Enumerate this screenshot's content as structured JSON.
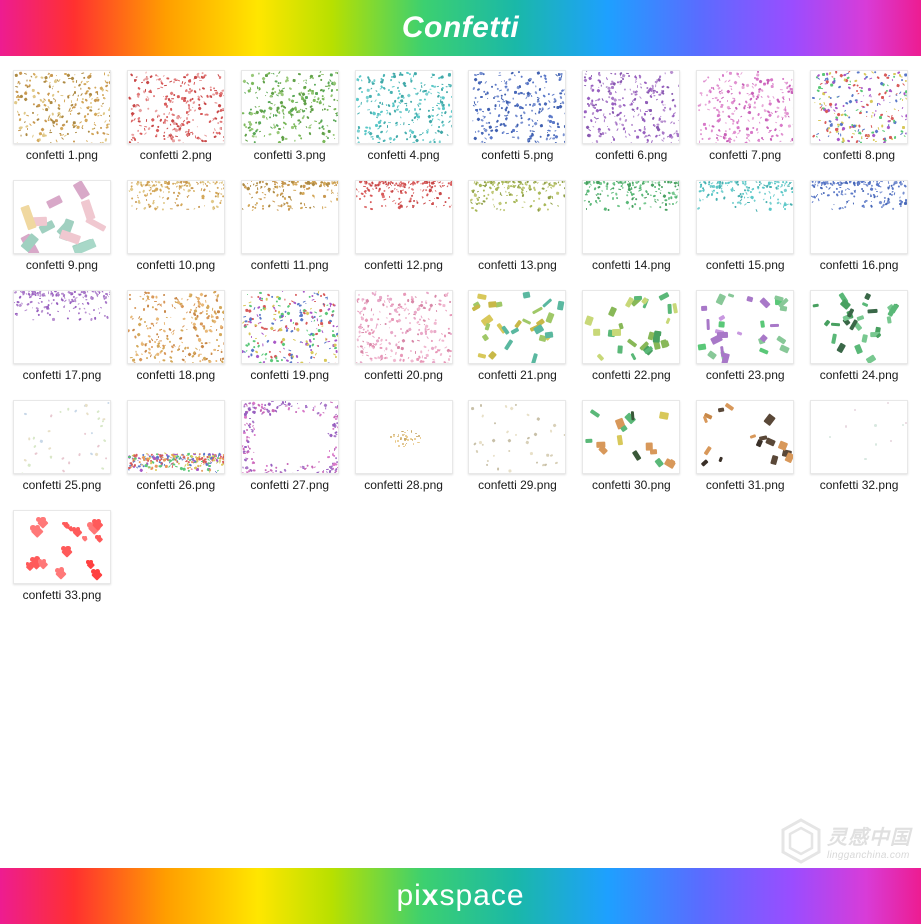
{
  "header": {
    "title": "Confetti"
  },
  "footer": {
    "brand_pre": "pi",
    "brand_x": "x",
    "brand_post": "space"
  },
  "watermark": {
    "cn": "灵感中国",
    "en": "lingganchina.com"
  },
  "grid": {
    "columns": 8,
    "thumb_width": 98,
    "thumb_height": 74,
    "label_fontsize": 12,
    "label_color": "#1a1a1a",
    "thumb_border": "#e8e8e8",
    "background": "#ffffff"
  },
  "rainbow_colors": [
    "#ed1c91",
    "#ff3030",
    "#ff9e00",
    "#ffe600",
    "#b8e000",
    "#3cd070",
    "#1ab8a8",
    "#1ea0ff",
    "#5a6cff",
    "#9a4dff",
    "#d83cd8",
    "#ed1c91"
  ],
  "files": [
    {
      "label": "confetti 1.png",
      "style": "dense-full",
      "colors": [
        "#d4a85a",
        "#c89850",
        "#ad8a44",
        "#e0c888"
      ]
    },
    {
      "label": "confetti 2.png",
      "style": "dense-full",
      "colors": [
        "#d85a5a",
        "#e07878",
        "#c84848",
        "#e8a0a0"
      ]
    },
    {
      "label": "confetti 3.png",
      "style": "dense-full",
      "colors": [
        "#7ab85a",
        "#60a048",
        "#98c878",
        "#5aa858"
      ]
    },
    {
      "label": "confetti 4.png",
      "style": "dense-full",
      "colors": [
        "#5ac8c8",
        "#48b0b0",
        "#78d0d0",
        "#40a8a8"
      ]
    },
    {
      "label": "confetti 5.png",
      "style": "dense-full",
      "colors": [
        "#5a78c8",
        "#4868b8",
        "#7890d0",
        "#4060b0"
      ]
    },
    {
      "label": "confetti 6.png",
      "style": "dense-full",
      "colors": [
        "#a878c8",
        "#9860c0",
        "#b890d0",
        "#8858b0"
      ]
    },
    {
      "label": "confetti 7.png",
      "style": "dense-full",
      "colors": [
        "#d878c8",
        "#e090d0",
        "#c860b8",
        "#e8a8d8"
      ]
    },
    {
      "label": "confetti 8.png",
      "style": "dense-full",
      "colors": [
        "#d85a5a",
        "#5ac878",
        "#5a78c8",
        "#d8c85a",
        "#a858c8"
      ]
    },
    {
      "label": "confetti 9.png",
      "style": "large-rects",
      "colors": [
        "#a8d8c8",
        "#d8a8c8",
        "#f0d8a0",
        "#c8a8e8",
        "#a0d0c0",
        "#f0c8d0"
      ]
    },
    {
      "label": "confetti 10.png",
      "style": "top-edge",
      "colors": [
        "#d4a85a",
        "#c89850",
        "#e0c888"
      ]
    },
    {
      "label": "confetti 11.png",
      "style": "top-edge",
      "colors": [
        "#d4a85a",
        "#c89850",
        "#ad8a44"
      ]
    },
    {
      "label": "confetti 12.png",
      "style": "top-edge",
      "colors": [
        "#d85a5a",
        "#e07878",
        "#c84848"
      ]
    },
    {
      "label": "confetti 13.png",
      "style": "top-edge",
      "colors": [
        "#a8b858",
        "#c0c878",
        "#90a048"
      ]
    },
    {
      "label": "confetti 14.png",
      "style": "top-edge",
      "colors": [
        "#5ab878",
        "#48a060",
        "#78c890"
      ]
    },
    {
      "label": "confetti 15.png",
      "style": "top-edge",
      "colors": [
        "#5ac8c8",
        "#48b0b0",
        "#78d0d0"
      ]
    },
    {
      "label": "confetti 16.png",
      "style": "top-edge",
      "colors": [
        "#5a78c8",
        "#4868b8",
        "#7890d0"
      ]
    },
    {
      "label": "confetti 17.png",
      "style": "top-edge",
      "colors": [
        "#a878c8",
        "#9860c0",
        "#b890d0"
      ]
    },
    {
      "label": "confetti 18.png",
      "style": "dense-full",
      "colors": [
        "#d4a85a",
        "#d8985a",
        "#c88848",
        "#e8b878"
      ]
    },
    {
      "label": "confetti 19.png",
      "style": "dense-full",
      "colors": [
        "#d85a5a",
        "#5ac878",
        "#d8c85a",
        "#5a78c8",
        "#a858c8"
      ]
    },
    {
      "label": "confetti 20.png",
      "style": "dense-full",
      "colors": [
        "#e8a8c8",
        "#e898b8",
        "#d888a8",
        "#f0b8d0"
      ]
    },
    {
      "label": "confetti 21.png",
      "style": "med-pieces",
      "colors": [
        "#d8c85a",
        "#c8b848",
        "#5ab8a0",
        "#a0c868"
      ]
    },
    {
      "label": "confetti 22.png",
      "style": "med-pieces",
      "colors": [
        "#5ab878",
        "#48a060",
        "#c8d878",
        "#88b858"
      ]
    },
    {
      "label": "confetti 23.png",
      "style": "med-pieces",
      "colors": [
        "#a878c8",
        "#5ac878",
        "#c898e0",
        "#88c898"
      ]
    },
    {
      "label": "confetti 24.png",
      "style": "med-pieces",
      "colors": [
        "#5ab878",
        "#48a060",
        "#3a6848",
        "#78c890"
      ]
    },
    {
      "label": "confetti 25.png",
      "style": "sparse",
      "colors": [
        "#e8c8d0",
        "#d8e8c8",
        "#c8d8e8",
        "#e8e0c8"
      ]
    },
    {
      "label": "confetti 26.png",
      "style": "bottom-pile",
      "colors": [
        "#d85a5a",
        "#5ac878",
        "#d8c85a",
        "#5a78c8",
        "#a858c8",
        "#e8985a"
      ]
    },
    {
      "label": "confetti 27.png",
      "style": "frame",
      "colors": [
        "#a878c8",
        "#d878c8",
        "#c868b8",
        "#9860c0"
      ]
    },
    {
      "label": "confetti 28.png",
      "style": "center-small",
      "colors": [
        "#d8b878",
        "#c8a868",
        "#e8c888"
      ]
    },
    {
      "label": "confetti 29.png",
      "style": "sparse",
      "colors": [
        "#d8d0b8",
        "#c8c0a8",
        "#e8e0c8"
      ]
    },
    {
      "label": "confetti 30.png",
      "style": "sparse-large",
      "colors": [
        "#3a5838",
        "#5ab878",
        "#d8c85a",
        "#d8985a"
      ]
    },
    {
      "label": "confetti 31.png",
      "style": "sparse-large",
      "colors": [
        "#3a3028",
        "#d8985a",
        "#5a4838",
        "#c88848"
      ]
    },
    {
      "label": "confetti 32.png",
      "style": "very-sparse",
      "colors": [
        "#e8d8e0",
        "#d8e8e0"
      ]
    },
    {
      "label": "confetti 33.png",
      "style": "hearts",
      "colors": [
        "#ff5a5a",
        "#ff4040",
        "#ff7878"
      ]
    }
  ]
}
